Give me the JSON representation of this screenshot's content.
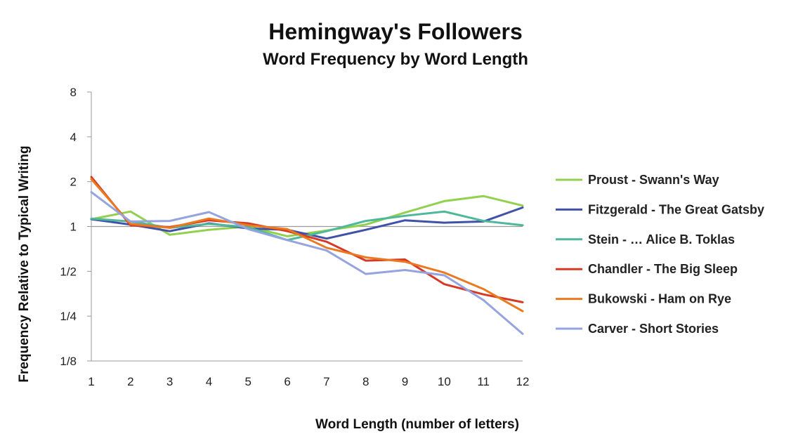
{
  "chart_data": {
    "type": "line",
    "title": "Hemingway's Followers",
    "subtitle": "Word Frequency by Word Length",
    "xlabel": "Word Length (number of letters)",
    "ylabel": "Frequency Relative to Typical Writing",
    "y_scale": "log2",
    "ylim": [
      0.125,
      8
    ],
    "y_ticks": [
      {
        "value": 8,
        "label": "8"
      },
      {
        "value": 4,
        "label": "4"
      },
      {
        "value": 2,
        "label": "2"
      },
      {
        "value": 1,
        "label": "1"
      },
      {
        "value": 0.5,
        "label": "1/2"
      },
      {
        "value": 0.25,
        "label": "1/4"
      },
      {
        "value": 0.125,
        "label": "1/8"
      }
    ],
    "x": [
      1,
      2,
      3,
      4,
      5,
      6,
      7,
      8,
      9,
      10,
      11,
      12
    ],
    "x_tick_labels": [
      "1",
      "2",
      "3",
      "4",
      "5",
      "6",
      "7",
      "8",
      "9",
      "10",
      "11",
      "12"
    ],
    "reference_line": 1,
    "legend_position": "right",
    "series": [
      {
        "name": "Proust - Swann's Way",
        "color": "#92d050",
        "values": [
          1.12,
          1.26,
          0.88,
          0.95,
          1.0,
          0.86,
          0.94,
          1.03,
          1.24,
          1.48,
          1.6,
          1.38
        ]
      },
      {
        "name": "Fitzgerald - The Great Gatsby",
        "color": "#3f51a8",
        "values": [
          1.12,
          1.03,
          0.93,
          1.05,
          0.97,
          0.95,
          0.83,
          0.95,
          1.1,
          1.06,
          1.08,
          1.34
        ]
      },
      {
        "name": "Stein - … Alice B. Toklas",
        "color": "#4fb89a",
        "values": [
          1.13,
          1.08,
          0.98,
          1.04,
          0.99,
          0.81,
          0.93,
          1.09,
          1.18,
          1.26,
          1.09,
          1.02
        ]
      },
      {
        "name": "Chandler - The Big Sleep",
        "color": "#d63a25",
        "values": [
          2.15,
          1.02,
          0.99,
          1.1,
          1.05,
          0.93,
          0.79,
          0.59,
          0.6,
          0.41,
          0.35,
          0.31
        ]
      },
      {
        "name": "Bukowski - Ham on Rye",
        "color": "#ea7a22",
        "values": [
          2.08,
          1.04,
          0.98,
          1.13,
          1.02,
          0.96,
          0.72,
          0.62,
          0.58,
          0.49,
          0.38,
          0.27
        ]
      },
      {
        "name": "Carver - Short Stories",
        "color": "#95a3de",
        "values": [
          1.7,
          1.08,
          1.09,
          1.25,
          0.96,
          0.81,
          0.69,
          0.48,
          0.51,
          0.47,
          0.32,
          0.19
        ]
      }
    ]
  }
}
